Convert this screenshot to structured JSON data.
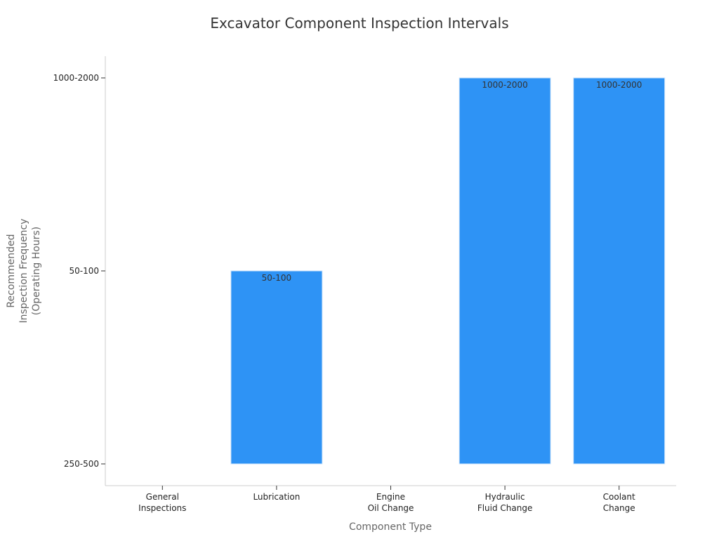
{
  "chart_data": {
    "type": "bar",
    "title": "Excavator Component Inspection Intervals",
    "xlabel": "Component Type",
    "ylabel": [
      "Recommended",
      "Inspection Frequency",
      "(Operating Hours)"
    ],
    "categories": [
      [
        "General",
        "Inspections"
      ],
      [
        "Lubrication"
      ],
      [
        "Engine",
        "Oil Change"
      ],
      [
        "Hydraulic",
        "Fluid Change"
      ],
      [
        "Coolant",
        "Change"
      ]
    ],
    "y_categories": [
      "250-500",
      "50-100",
      "1000-2000"
    ],
    "values": [
      null,
      "50-100",
      null,
      "1000-2000",
      "1000-2000"
    ],
    "bar_color": "#2e93f5",
    "grid": false
  }
}
